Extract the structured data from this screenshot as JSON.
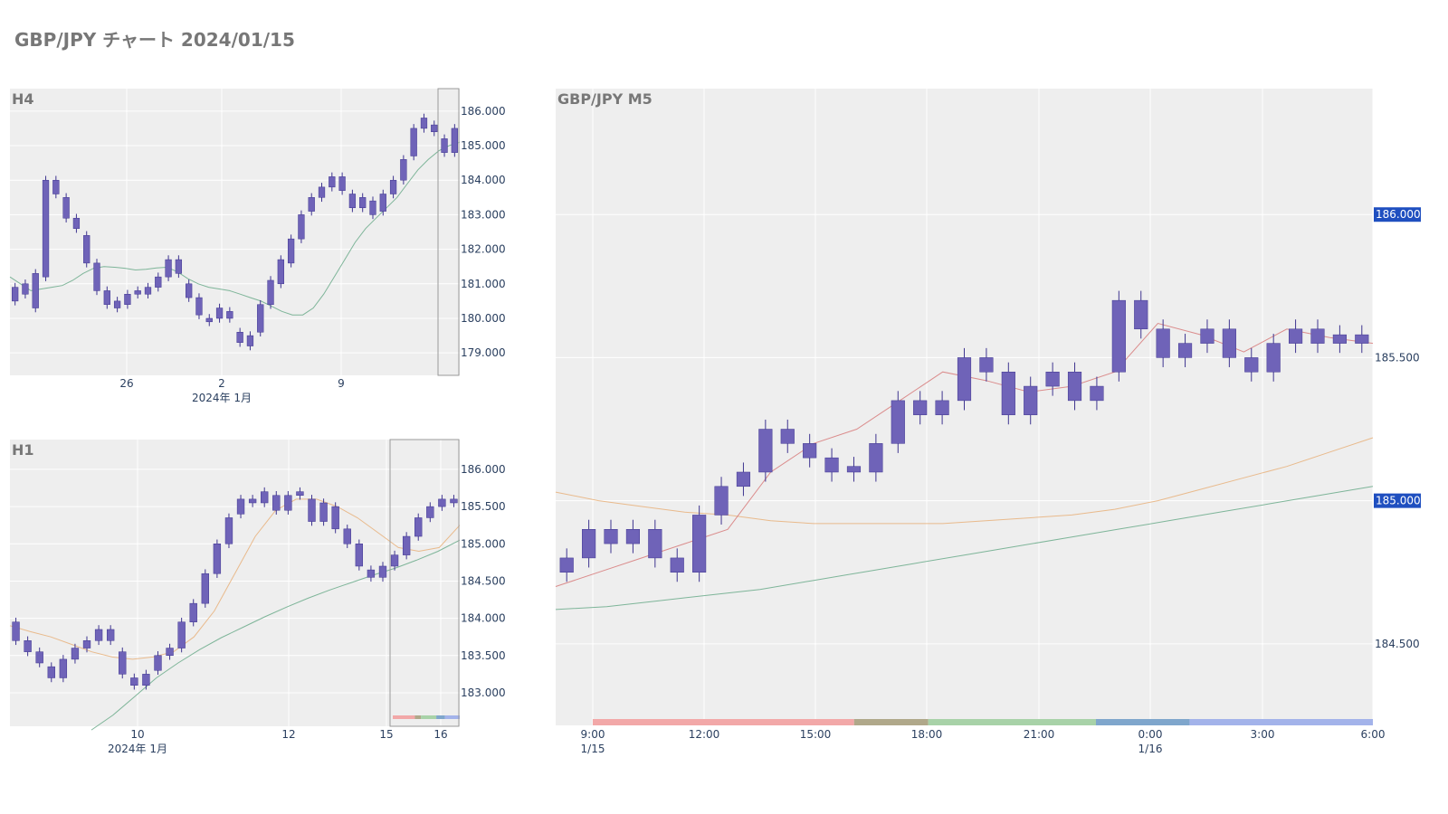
{
  "page": {
    "title": "GBP/JPY チャート 2024/01/15"
  },
  "colors": {
    "plot_bg": "#eeeeee",
    "grid": "#ffffff",
    "candle": "#6f63b8",
    "candle_border": "#3f3590",
    "ma_green": "#6aaa8a",
    "ma_orange": "#e8b07a",
    "ma_red": "#d77a7a",
    "badge": "#1f4fc0",
    "highlight_box": "#999999",
    "session_sydney": "#f2a8a8",
    "session_tokyo": "#b0a88a",
    "session_london": "#a8d2a8",
    "session_ny1": "#7fa6cc",
    "session_ny2": "#a3b3ea"
  },
  "chart_data": [
    {
      "id": "h4",
      "label": "H4",
      "type": "candlestick",
      "y_ticks": [
        "179.000",
        "180.000",
        "181.000",
        "182.000",
        "183.000",
        "184.000",
        "185.000",
        "186.000"
      ],
      "ylim": [
        178.35,
        186.65
      ],
      "x_ticks": [
        "26",
        "2",
        "9"
      ],
      "x_sublabel": "2024年 1月",
      "moving_averages": [
        {
          "color_key": "ma_green",
          "values": [
            181.2,
            181.0,
            180.8,
            180.85,
            180.9,
            180.95,
            181.1,
            181.3,
            181.45,
            181.5,
            181.48,
            181.45,
            181.4,
            181.42,
            181.46,
            181.48,
            181.35,
            181.15,
            181.0,
            180.9,
            180.85,
            180.8,
            180.7,
            180.6,
            180.5,
            180.35,
            180.2,
            180.1,
            180.1,
            180.3,
            180.7,
            181.2,
            181.7,
            182.2,
            182.6,
            182.9,
            183.2,
            183.5,
            183.9,
            184.3,
            184.6,
            184.85,
            185.0,
            185.1
          ]
        }
      ],
      "candles": [
        [
          180.5,
          180.9
        ],
        [
          180.7,
          181.0
        ],
        [
          180.3,
          181.3
        ],
        [
          181.2,
          184.0
        ],
        [
          184.0,
          183.6
        ],
        [
          183.5,
          182.9
        ],
        [
          182.9,
          182.6
        ],
        [
          182.4,
          181.6
        ],
        [
          181.6,
          180.8
        ],
        [
          180.8,
          180.4
        ],
        [
          180.3,
          180.5
        ],
        [
          180.4,
          180.7
        ],
        [
          180.8,
          180.7
        ],
        [
          180.7,
          180.9
        ],
        [
          180.9,
          181.2
        ],
        [
          181.2,
          181.7
        ],
        [
          181.7,
          181.3
        ],
        [
          181.0,
          180.6
        ],
        [
          180.6,
          180.1
        ],
        [
          180.0,
          179.9
        ],
        [
          180.0,
          180.3
        ],
        [
          180.2,
          180.0
        ],
        [
          179.6,
          179.3
        ],
        [
          179.2,
          179.5
        ],
        [
          179.6,
          180.4
        ],
        [
          180.4,
          181.1
        ],
        [
          181.0,
          181.7
        ],
        [
          181.6,
          182.3
        ],
        [
          182.3,
          183.0
        ],
        [
          183.1,
          183.5
        ],
        [
          183.5,
          183.8
        ],
        [
          183.8,
          184.1
        ],
        [
          184.1,
          183.7
        ],
        [
          183.6,
          183.2
        ],
        [
          183.2,
          183.5
        ],
        [
          183.4,
          183.0
        ],
        [
          183.1,
          183.6
        ],
        [
          183.6,
          184.0
        ],
        [
          184.0,
          184.6
        ],
        [
          184.7,
          185.5
        ],
        [
          185.5,
          185.8
        ],
        [
          185.6,
          185.4
        ],
        [
          185.2,
          184.8
        ],
        [
          184.8,
          185.5
        ]
      ]
    },
    {
      "id": "h1",
      "label": "H1",
      "type": "candlestick",
      "y_ticks": [
        "183.000",
        "183.500",
        "184.000",
        "184.500",
        "185.000",
        "185.500",
        "186.000"
      ],
      "ylim": [
        182.55,
        186.4
      ],
      "x_ticks": [
        "10",
        "12",
        "15",
        "16"
      ],
      "x_sublabel": "2024年 1月",
      "moving_averages": [
        {
          "color_key": "ma_orange",
          "values": [
            183.9,
            183.82,
            183.75,
            183.65,
            183.55,
            183.48,
            183.45,
            183.48,
            183.55,
            183.75,
            184.1,
            184.6,
            185.1,
            185.45,
            185.6,
            185.6,
            185.5,
            185.35,
            185.15,
            184.95,
            184.9,
            184.95,
            185.25
          ]
        },
        {
          "color_key": "ma_green",
          "values": [
            182.5,
            182.7,
            182.95,
            183.2,
            183.4,
            183.58,
            183.74,
            183.88,
            184.02,
            184.15,
            184.27,
            184.38,
            184.48,
            184.58,
            184.67,
            184.78,
            184.9,
            185.05
          ]
        }
      ],
      "session_strip": [
        {
          "color_key": "session_sydney",
          "from": 0,
          "to": 0.33
        },
        {
          "color_key": "session_tokyo",
          "from": 0.33,
          "to": 0.42
        },
        {
          "color_key": "session_london",
          "from": 0.42,
          "to": 0.65
        },
        {
          "color_key": "session_ny1",
          "from": 0.65,
          "to": 0.78
        },
        {
          "color_key": "session_ny2",
          "from": 0.78,
          "to": 1.0
        }
      ],
      "candles": [
        [
          183.95,
          183.7
        ],
        [
          183.7,
          183.55
        ],
        [
          183.55,
          183.4
        ],
        [
          183.35,
          183.2
        ],
        [
          183.2,
          183.45
        ],
        [
          183.45,
          183.6
        ],
        [
          183.6,
          183.7
        ],
        [
          183.7,
          183.85
        ],
        [
          183.85,
          183.7
        ],
        [
          183.55,
          183.25
        ],
        [
          183.2,
          183.1
        ],
        [
          183.1,
          183.25
        ],
        [
          183.3,
          183.5
        ],
        [
          183.5,
          183.6
        ],
        [
          183.6,
          183.95
        ],
        [
          183.95,
          184.2
        ],
        [
          184.2,
          184.6
        ],
        [
          184.6,
          185.0
        ],
        [
          185.0,
          185.35
        ],
        [
          185.4,
          185.6
        ],
        [
          185.6,
          185.55
        ],
        [
          185.55,
          185.7
        ],
        [
          185.65,
          185.45
        ],
        [
          185.45,
          185.65
        ],
        [
          185.65,
          185.7
        ],
        [
          185.6,
          185.3
        ],
        [
          185.3,
          185.55
        ],
        [
          185.5,
          185.2
        ],
        [
          185.2,
          185.0
        ],
        [
          185.0,
          184.7
        ],
        [
          184.65,
          184.55
        ],
        [
          184.55,
          184.7
        ],
        [
          184.7,
          184.85
        ],
        [
          184.85,
          185.1
        ],
        [
          185.1,
          185.35
        ],
        [
          185.35,
          185.5
        ],
        [
          185.5,
          185.6
        ],
        [
          185.6,
          185.55
        ]
      ]
    },
    {
      "id": "m5",
      "label": "GBP/JPY M5",
      "type": "candlestick",
      "y_ticks": [
        "184.500",
        "185.500"
      ],
      "ylim": [
        184.215,
        186.44
      ],
      "highlight_levels": [
        "186.000",
        "185.000"
      ],
      "x_ticks": [
        {
          "time": "9:00",
          "date": "1/15"
        },
        {
          "time": "12:00",
          "date": ""
        },
        {
          "time": "15:00",
          "date": ""
        },
        {
          "time": "18:00",
          "date": ""
        },
        {
          "time": "21:00",
          "date": ""
        },
        {
          "time": "0:00",
          "date": "1/16"
        },
        {
          "time": "3:00",
          "date": ""
        },
        {
          "time": "6:00",
          "date": ""
        }
      ],
      "session_strip": [
        {
          "color_key": "session_sydney",
          "from": 0.0,
          "to": 0.335
        },
        {
          "color_key": "session_tokyo",
          "from": 0.335,
          "to": 0.43
        },
        {
          "color_key": "session_london",
          "from": 0.43,
          "to": 0.645
        },
        {
          "color_key": "session_ny1",
          "from": 0.645,
          "to": 0.765
        },
        {
          "color_key": "session_ny2",
          "from": 0.765,
          "to": 1.0
        }
      ],
      "moving_averages": [
        {
          "color_key": "ma_orange",
          "values": [
            185.03,
            185.0,
            184.98,
            184.96,
            184.95,
            184.93,
            184.92,
            184.92,
            184.92,
            184.92,
            184.93,
            184.94,
            184.95,
            184.97,
            185.0,
            185.04,
            185.08,
            185.12,
            185.17,
            185.22
          ]
        },
        {
          "color_key": "ma_green",
          "values": [
            184.62,
            184.63,
            184.65,
            184.67,
            184.69,
            184.72,
            184.75,
            184.78,
            184.81,
            184.84,
            184.87,
            184.9,
            184.93,
            184.96,
            184.99,
            185.02,
            185.05
          ]
        },
        {
          "color_key": "ma_red",
          "values": [
            184.7,
            184.75,
            184.8,
            184.85,
            184.9,
            185.1,
            185.2,
            185.25,
            185.35,
            185.45,
            185.42,
            185.38,
            185.4,
            185.45,
            185.62,
            185.58,
            185.52,
            185.6,
            185.57,
            185.55
          ]
        }
      ],
      "candles": [
        [
          184.75,
          184.8
        ],
        [
          184.8,
          184.9
        ],
        [
          184.9,
          184.85
        ],
        [
          184.85,
          184.9
        ],
        [
          184.9,
          184.8
        ],
        [
          184.8,
          184.75
        ],
        [
          184.75,
          184.95
        ],
        [
          184.95,
          185.05
        ],
        [
          185.05,
          185.1
        ],
        [
          185.1,
          185.25
        ],
        [
          185.25,
          185.2
        ],
        [
          185.2,
          185.15
        ],
        [
          185.15,
          185.1
        ],
        [
          185.1,
          185.12
        ],
        [
          185.1,
          185.2
        ],
        [
          185.2,
          185.35
        ],
        [
          185.35,
          185.3
        ],
        [
          185.3,
          185.35
        ],
        [
          185.35,
          185.5
        ],
        [
          185.5,
          185.45
        ],
        [
          185.45,
          185.3
        ],
        [
          185.3,
          185.4
        ],
        [
          185.4,
          185.45
        ],
        [
          185.45,
          185.35
        ],
        [
          185.35,
          185.4
        ],
        [
          185.45,
          185.7
        ],
        [
          185.7,
          185.6
        ],
        [
          185.6,
          185.5
        ],
        [
          185.5,
          185.55
        ],
        [
          185.55,
          185.6
        ],
        [
          185.6,
          185.5
        ],
        [
          185.5,
          185.45
        ],
        [
          185.45,
          185.55
        ],
        [
          185.55,
          185.6
        ],
        [
          185.6,
          185.55
        ],
        [
          185.55,
          185.58
        ],
        [
          185.58,
          185.55
        ]
      ]
    }
  ]
}
